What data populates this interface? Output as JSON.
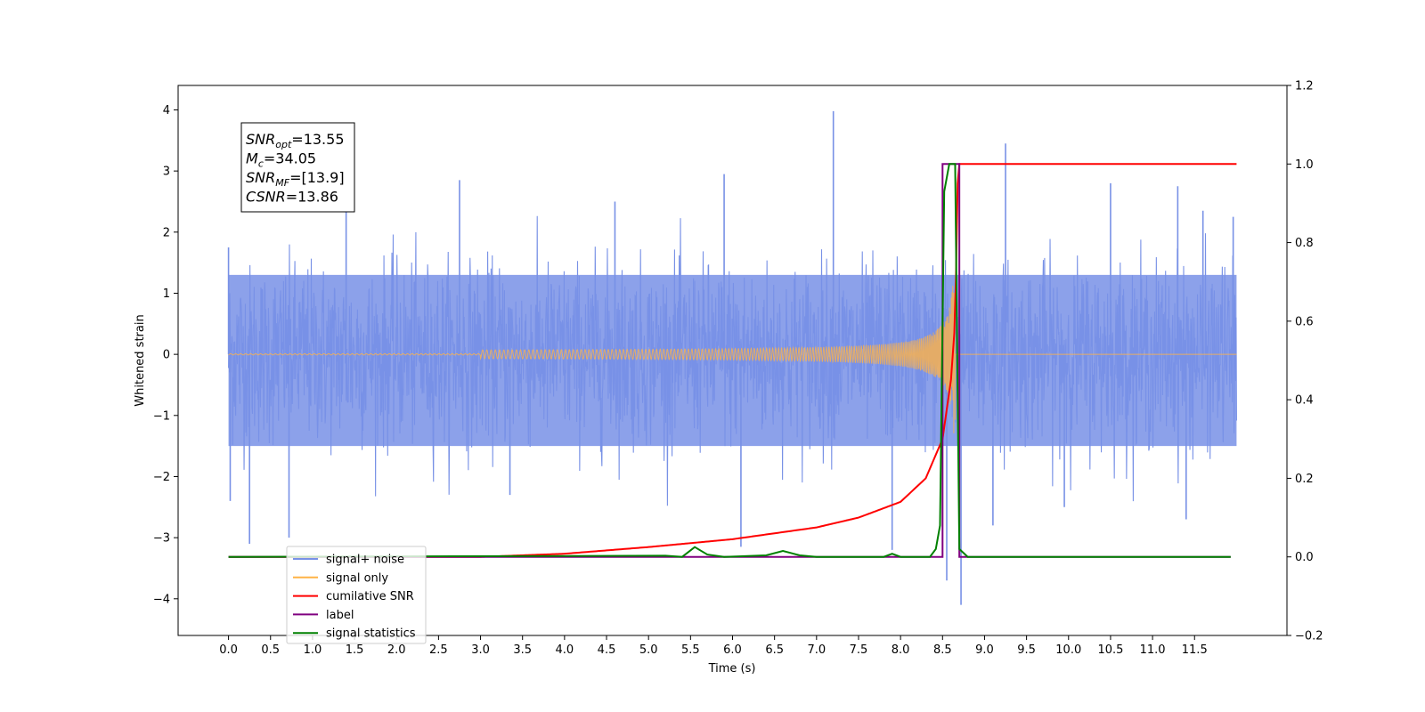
{
  "chart_data": {
    "type": "line",
    "xlabel": "Time (s)",
    "ylabel": "Whitened strain",
    "xlim": [
      -0.6,
      12.6
    ],
    "ylim": [
      -4.6,
      4.4
    ],
    "y2lim": [
      -0.2,
      1.2
    ],
    "grid": false,
    "legend_position": "lower-left",
    "x_ticks": [
      "0.0",
      "0.5",
      "1.0",
      "1.5",
      "2.0",
      "2.5",
      "3.0",
      "3.5",
      "4.0",
      "4.5",
      "5.0",
      "5.5",
      "6.0",
      "6.5",
      "7.0",
      "7.5",
      "8.0",
      "8.5",
      "9.0",
      "9.5",
      "10.0",
      "10.5",
      "11.0",
      "11.5"
    ],
    "y_ticks": [
      "−4",
      "−3",
      "−2",
      "−1",
      "0",
      "1",
      "2",
      "3",
      "4"
    ],
    "y2_ticks": [
      "−0.2",
      "0.0",
      "0.2",
      "0.4",
      "0.6",
      "0.8",
      "1.0",
      "1.2"
    ],
    "annotation": [
      {
        "main": "SNR",
        "sub": "opt",
        "rest": "=13.55"
      },
      {
        "main": "M",
        "sub": "c",
        "rest": "=34.05"
      },
      {
        "main": "SNR",
        "sub": "MF",
        "rest": "=[13.9]"
      },
      {
        "main": "CSNR",
        "sub": "",
        "rest": "=13.86"
      }
    ],
    "series": [
      {
        "name": "signal+ noise",
        "color": "#7891e6",
        "axis": "left",
        "x_range": [
          0.0,
          12.0
        ],
        "band": [
          [
            0.0,
            -1.5,
            1.3
          ],
          [
            12.0,
            -1.5,
            1.3
          ]
        ],
        "spikes": [
          [
            0.0,
            1.75
          ],
          [
            0.02,
            -2.4
          ],
          [
            0.25,
            -3.1
          ],
          [
            0.72,
            -3.0
          ],
          [
            1.4,
            2.9
          ],
          [
            2.75,
            2.85
          ],
          [
            5.9,
            2.95
          ],
          [
            6.1,
            -3.15
          ],
          [
            7.2,
            3.98
          ],
          [
            7.9,
            -3.2
          ],
          [
            8.55,
            -3.7
          ],
          [
            8.72,
            -4.1
          ],
          [
            9.25,
            3.45
          ],
          [
            9.1,
            -2.8
          ],
          [
            10.5,
            2.8
          ],
          [
            11.3,
            2.75
          ],
          [
            11.6,
            2.35
          ],
          [
            11.96,
            2.25
          ],
          [
            11.4,
            -2.7
          ],
          [
            9.95,
            -2.5
          ],
          [
            3.35,
            -2.3
          ],
          [
            4.6,
            2.5
          ]
        ]
      },
      {
        "name": "signal only",
        "color": "#ffb347",
        "axis": "left",
        "x_range": [
          0.0,
          12.0
        ],
        "chirp_end": 8.65
      },
      {
        "name": "cumilative SNR",
        "color": "#ff0000",
        "axis": "right",
        "points": [
          [
            0.0,
            0.0
          ],
          [
            3.0,
            0.0
          ],
          [
            4.0,
            0.008
          ],
          [
            5.0,
            0.025
          ],
          [
            6.0,
            0.045
          ],
          [
            7.0,
            0.075
          ],
          [
            7.5,
            0.1
          ],
          [
            8.0,
            0.14
          ],
          [
            8.3,
            0.2
          ],
          [
            8.5,
            0.3
          ],
          [
            8.6,
            0.45
          ],
          [
            8.65,
            0.6
          ],
          [
            8.68,
            0.95
          ],
          [
            8.7,
            1.0
          ],
          [
            12.0,
            1.0
          ]
        ]
      },
      {
        "name": "label",
        "color": "#800080",
        "axis": "right",
        "points": [
          [
            0.0,
            0.0
          ],
          [
            8.5,
            0.0
          ],
          [
            8.5,
            1.0
          ],
          [
            8.7,
            1.0
          ],
          [
            8.7,
            0.0
          ],
          [
            11.93,
            0.0
          ]
        ]
      },
      {
        "name": "signal statistics",
        "color": "#008000",
        "axis": "right",
        "points": [
          [
            0.0,
            0.0
          ],
          [
            5.2,
            0.003
          ],
          [
            5.4,
            0.0
          ],
          [
            5.55,
            0.025
          ],
          [
            5.7,
            0.006
          ],
          [
            5.9,
            0.0
          ],
          [
            6.4,
            0.004
          ],
          [
            6.6,
            0.015
          ],
          [
            6.8,
            0.004
          ],
          [
            7.0,
            0.0
          ],
          [
            7.8,
            0.0
          ],
          [
            7.9,
            0.008
          ],
          [
            8.0,
            0.0
          ],
          [
            8.35,
            0.0
          ],
          [
            8.42,
            0.02
          ],
          [
            8.47,
            0.08
          ],
          [
            8.52,
            0.93
          ],
          [
            8.58,
            1.0
          ],
          [
            8.65,
            1.0
          ],
          [
            8.7,
            0.02
          ],
          [
            8.8,
            0.0
          ],
          [
            11.93,
            0.0
          ]
        ]
      }
    ],
    "legend": [
      {
        "label": "signal+ noise",
        "color": "#7891e6"
      },
      {
        "label": "signal only",
        "color": "#ffb347"
      },
      {
        "label": "cumilative SNR",
        "color": "#ff0000"
      },
      {
        "label": "label",
        "color": "#800080"
      },
      {
        "label": "signal statistics",
        "color": "#008000"
      }
    ]
  }
}
